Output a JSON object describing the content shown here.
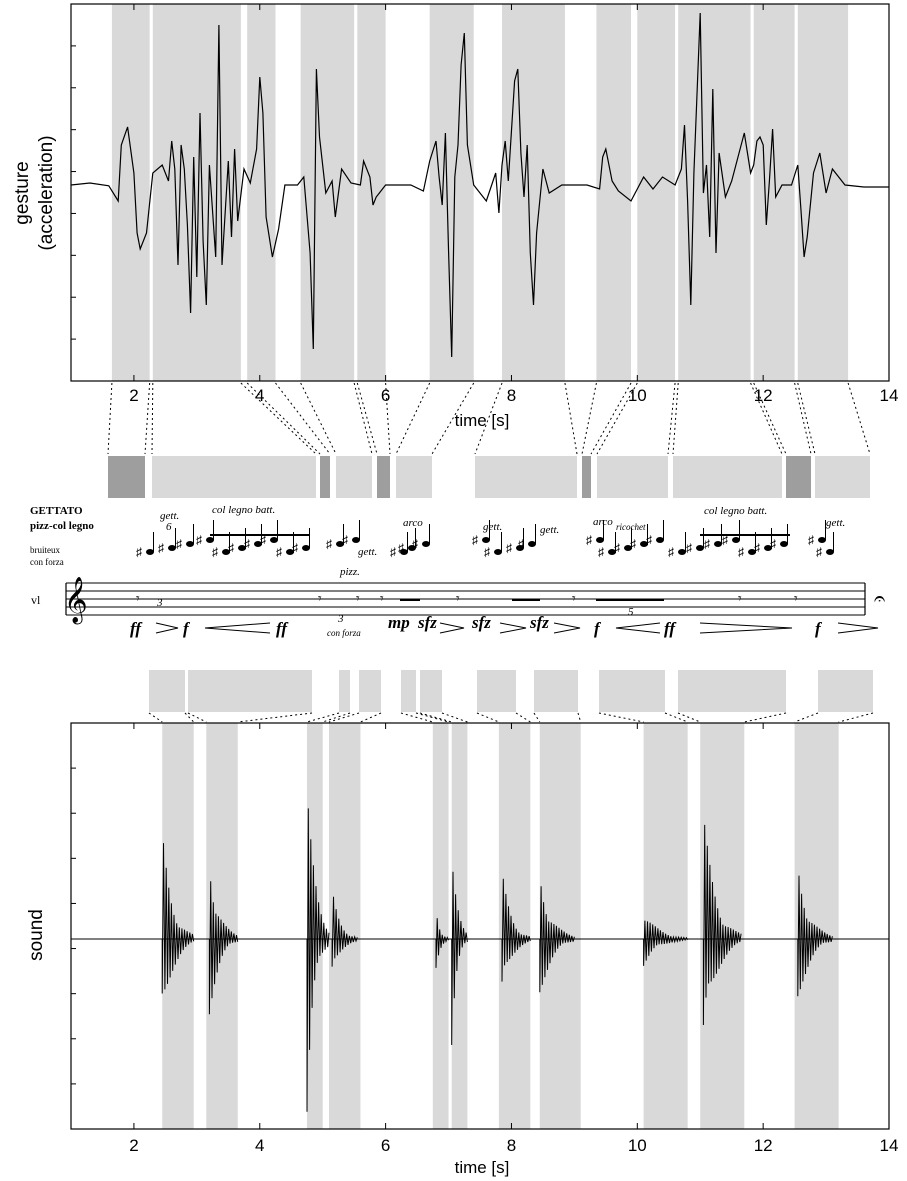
{
  "chart_data": [
    {
      "type": "line",
      "panel": "gesture",
      "ylabel_lines": [
        "gesture",
        "(acceleration)"
      ],
      "xlabel": "time [s]",
      "xlim": [
        1,
        14
      ],
      "x_ticks": [
        2,
        4,
        6,
        8,
        10,
        12,
        14
      ],
      "grid": false,
      "shaded_segments_s": [
        [
          1.65,
          2.25
        ],
        [
          2.3,
          3.7
        ],
        [
          3.8,
          4.25
        ],
        [
          4.65,
          5.5
        ],
        [
          5.55,
          6.0
        ],
        [
          6.7,
          7.4
        ],
        [
          7.85,
          8.85
        ],
        [
          9.35,
          9.9
        ],
        [
          10.0,
          10.6
        ],
        [
          10.65,
          11.8
        ],
        [
          11.85,
          12.5
        ],
        [
          12.55,
          13.35
        ]
      ],
      "series": [
        {
          "values": [
            [
              1.0,
              0.0
            ],
            [
              1.3,
              0.05
            ],
            [
              1.6,
              -0.02
            ],
            [
              1.75,
              -0.4
            ],
            [
              1.8,
              1.0
            ],
            [
              1.9,
              1.45
            ],
            [
              2.0,
              0.3
            ],
            [
              2.05,
              -1.2
            ],
            [
              2.1,
              -1.6
            ],
            [
              2.2,
              -1.2
            ],
            [
              2.3,
              0.3
            ],
            [
              2.45,
              0.5
            ],
            [
              2.55,
              0.1
            ],
            [
              2.6,
              1.1
            ],
            [
              2.65,
              0.4
            ],
            [
              2.7,
              -2.0
            ],
            [
              2.75,
              1.0
            ],
            [
              2.8,
              0.4
            ],
            [
              2.85,
              -1.0
            ],
            [
              2.9,
              -3.2
            ],
            [
              2.95,
              0.7
            ],
            [
              3.0,
              -2.3
            ],
            [
              3.05,
              1.8
            ],
            [
              3.1,
              -1.4
            ],
            [
              3.15,
              -3.0
            ],
            [
              3.2,
              0.5
            ],
            [
              3.3,
              -1.8
            ],
            [
              3.35,
              4.0
            ],
            [
              3.4,
              -2.0
            ],
            [
              3.5,
              0.6
            ],
            [
              3.55,
              -1.3
            ],
            [
              3.6,
              0.9
            ],
            [
              3.65,
              -0.9
            ],
            [
              3.75,
              0.4
            ],
            [
              3.85,
              0.05
            ],
            [
              3.95,
              0.9
            ],
            [
              4.0,
              2.7
            ],
            [
              4.05,
              1.8
            ],
            [
              4.1,
              -0.8
            ],
            [
              4.2,
              -1.8
            ],
            [
              4.3,
              -1.1
            ],
            [
              4.4,
              0.0
            ],
            [
              4.6,
              0.0
            ],
            [
              4.7,
              0.2
            ],
            [
              4.8,
              -1.7
            ],
            [
              4.85,
              -4.1
            ],
            [
              4.9,
              2.9
            ],
            [
              4.95,
              1.2
            ],
            [
              5.05,
              -0.2
            ],
            [
              5.15,
              0.1
            ],
            [
              5.2,
              -0.8
            ],
            [
              5.3,
              0.4
            ],
            [
              5.45,
              0.05
            ],
            [
              5.6,
              0.0
            ],
            [
              5.65,
              0.6
            ],
            [
              5.75,
              0.2
            ],
            [
              5.8,
              -0.5
            ],
            [
              5.85,
              -0.3
            ],
            [
              6.0,
              0.0
            ],
            [
              6.4,
              0.0
            ],
            [
              6.6,
              -0.15
            ],
            [
              6.7,
              0.6
            ],
            [
              6.8,
              1.1
            ],
            [
              6.85,
              0.2
            ],
            [
              6.9,
              -0.5
            ],
            [
              6.95,
              1.3
            ],
            [
              7.0,
              -1.6
            ],
            [
              7.05,
              -4.3
            ],
            [
              7.1,
              0.2
            ],
            [
              7.15,
              1.0
            ],
            [
              7.2,
              3.0
            ],
            [
              7.25,
              3.8
            ],
            [
              7.3,
              1.0
            ],
            [
              7.4,
              0.0
            ],
            [
              7.6,
              -0.4
            ],
            [
              7.75,
              0.3
            ],
            [
              7.8,
              -0.7
            ],
            [
              7.85,
              0.5
            ],
            [
              7.9,
              1.1
            ],
            [
              7.95,
              0.1
            ],
            [
              8.05,
              2.6
            ],
            [
              8.1,
              2.9
            ],
            [
              8.15,
              0.8
            ],
            [
              8.2,
              -0.3
            ],
            [
              8.25,
              1.0
            ],
            [
              8.3,
              -1.7
            ],
            [
              8.35,
              -3.0
            ],
            [
              8.4,
              -1.2
            ],
            [
              8.5,
              0.4
            ],
            [
              8.6,
              -0.2
            ],
            [
              8.8,
              0.0
            ],
            [
              9.2,
              0.0
            ],
            [
              9.4,
              -0.1
            ],
            [
              9.45,
              0.7
            ],
            [
              9.5,
              0.9
            ],
            [
              9.6,
              0.1
            ],
            [
              9.7,
              -0.15
            ],
            [
              9.9,
              -0.4
            ],
            [
              10.0,
              -0.1
            ],
            [
              10.1,
              0.2
            ],
            [
              10.25,
              -0.1
            ],
            [
              10.4,
              0.2
            ],
            [
              10.6,
              0.0
            ],
            [
              10.7,
              0.4
            ],
            [
              10.75,
              1.5
            ],
            [
              10.8,
              -0.4
            ],
            [
              10.85,
              -3.0
            ],
            [
              10.9,
              0.3
            ],
            [
              11.0,
              4.3
            ],
            [
              11.05,
              -0.2
            ],
            [
              11.1,
              0.5
            ],
            [
              11.15,
              -1.3
            ],
            [
              11.2,
              2.4
            ],
            [
              11.25,
              -1.7
            ],
            [
              11.3,
              0.8
            ],
            [
              11.4,
              -0.3
            ],
            [
              11.5,
              0.1
            ],
            [
              11.6,
              0.7
            ],
            [
              11.7,
              1.3
            ],
            [
              11.8,
              0.3
            ],
            [
              11.85,
              0.5
            ],
            [
              11.9,
              1.1
            ],
            [
              11.95,
              1.2
            ],
            [
              12.0,
              1.0
            ],
            [
              12.05,
              -1.0
            ],
            [
              12.1,
              0.1
            ],
            [
              12.15,
              1.4
            ],
            [
              12.2,
              -0.3
            ],
            [
              12.3,
              0.0
            ],
            [
              12.45,
              0.0
            ],
            [
              12.55,
              0.5
            ],
            [
              12.6,
              -0.6
            ],
            [
              12.65,
              -1.8
            ],
            [
              12.7,
              -1.3
            ],
            [
              12.8,
              0.3
            ],
            [
              12.9,
              0.8
            ],
            [
              13.0,
              -0.2
            ],
            [
              13.1,
              0.4
            ],
            [
              13.3,
              0.0
            ],
            [
              13.6,
              -0.05
            ],
            [
              14.0,
              -0.05
            ]
          ]
        }
      ]
    },
    {
      "type": "line",
      "panel": "sound",
      "ylabel": "sound",
      "xlabel": "time [s]",
      "xlim": [
        1,
        14
      ],
      "x_ticks": [
        2,
        4,
        6,
        8,
        10,
        12,
        14
      ],
      "grid": false,
      "shaded_segments_s": [
        [
          2.45,
          2.95
        ],
        [
          3.15,
          3.65
        ],
        [
          4.75,
          5.0
        ],
        [
          5.1,
          5.6
        ],
        [
          6.75,
          7.0
        ],
        [
          7.05,
          7.3
        ],
        [
          7.8,
          8.3
        ],
        [
          8.45,
          9.1
        ],
        [
          10.1,
          10.8
        ],
        [
          11.0,
          11.7
        ],
        [
          12.5,
          13.2
        ]
      ],
      "onsets": [
        {
          "t": 2.45,
          "amp": 0.55,
          "dur": 0.5
        },
        {
          "t": 3.2,
          "amp": 0.45,
          "dur": 0.45
        },
        {
          "t": 4.75,
          "amp": 1.0,
          "dur": 0.35
        },
        {
          "t": 5.15,
          "amp": 0.25,
          "dur": 0.4
        },
        {
          "t": 6.8,
          "amp": 0.18,
          "dur": 0.2
        },
        {
          "t": 7.05,
          "amp": 0.6,
          "dur": 0.25
        },
        {
          "t": 7.85,
          "amp": 0.35,
          "dur": 0.45
        },
        {
          "t": 8.45,
          "amp": 0.35,
          "dur": 0.55
        },
        {
          "t": 10.1,
          "amp": 0.15,
          "dur": 0.7
        },
        {
          "t": 11.05,
          "amp": 0.65,
          "dur": 0.6
        },
        {
          "t": 12.55,
          "amp": 0.4,
          "dur": 0.55
        }
      ]
    }
  ],
  "score": {
    "technique_title": "GETTATO",
    "technique_subtitle": "pizz-col legno",
    "instrument": "vl",
    "tempo_note_lines": [
      "bruiteux",
      "con forza"
    ],
    "labels": [
      {
        "text": "gett.",
        "style": "italic"
      },
      {
        "text": "6",
        "style": "italic"
      },
      {
        "text": "col legno batt.",
        "style": "italic"
      },
      {
        "text": "pizz.",
        "style": "italic"
      },
      {
        "text": "gett.",
        "style": "italic"
      },
      {
        "text": "arco",
        "style": "italic"
      },
      {
        "text": "gett.",
        "style": "italic"
      },
      {
        "text": "gett.",
        "style": "italic"
      },
      {
        "text": "arco",
        "style": "italic"
      },
      {
        "text": "ricochet",
        "style": "italic"
      },
      {
        "text": "col legno batt.",
        "style": "italic"
      },
      {
        "text": "gett.",
        "style": "italic"
      },
      {
        "text": "3",
        "style": "italic"
      },
      {
        "text": "3",
        "style": "italic"
      },
      {
        "text": "con forza",
        "style": "italic"
      },
      {
        "text": "5",
        "style": "italic"
      }
    ],
    "dynamics": [
      "ff",
      "f",
      "ff",
      "mp",
      "sfz",
      "sfz",
      "sfz",
      "f",
      "ff",
      "f"
    ]
  }
}
